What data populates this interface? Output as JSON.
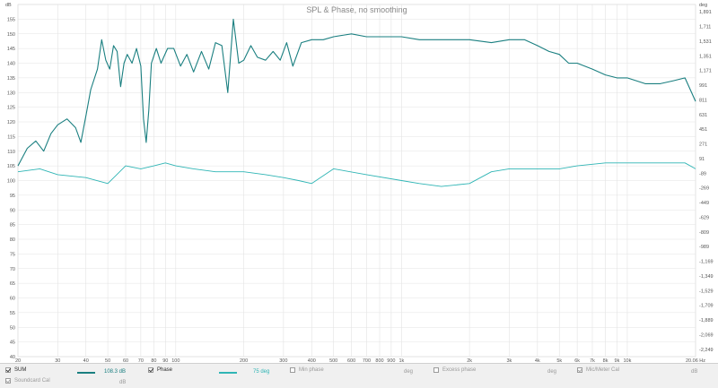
{
  "chart_data": {
    "type": "line",
    "title": "SPL & Phase, no smoothing",
    "y_left": {
      "unit": "dB",
      "min": 40,
      "max": 160,
      "ticks": [
        40,
        45,
        50,
        55,
        60,
        65,
        70,
        75,
        80,
        85,
        90,
        95,
        100,
        105,
        110,
        115,
        120,
        125,
        130,
        135,
        140,
        145,
        150,
        155
      ]
    },
    "y_right": {
      "unit": "deg",
      "ticks": [
        "-2,249",
        "-2,069",
        "-1,889",
        "-1,709",
        "-1,529",
        "-1,349",
        "-1,169",
        "-989",
        "-809",
        "-629",
        "-449",
        "-269",
        "-89",
        "91",
        "271",
        "451",
        "631",
        "811",
        "991",
        "1,171",
        "1,351",
        "1,531",
        "1,711",
        "1,891",
        "2,071"
      ],
      "top_label": "deg"
    },
    "x_axis": {
      "scale": "log",
      "min": 20,
      "max": 20060,
      "ticks": [
        {
          "v": 20,
          "label": "20"
        },
        {
          "v": 30,
          "label": "30"
        },
        {
          "v": 40,
          "label": "40"
        },
        {
          "v": 50,
          "label": "50"
        },
        {
          "v": 60,
          "label": "60"
        },
        {
          "v": 70,
          "label": "70"
        },
        {
          "v": 80,
          "label": "80"
        },
        {
          "v": 90,
          "label": "90"
        },
        {
          "v": 100,
          "label": "100"
        },
        {
          "v": 200,
          "label": "200"
        },
        {
          "v": 300,
          "label": "300"
        },
        {
          "v": 400,
          "label": "400"
        },
        {
          "v": 500,
          "label": "500"
        },
        {
          "v": 600,
          "label": "600"
        },
        {
          "v": 700,
          "label": "700"
        },
        {
          "v": 800,
          "label": "800"
        },
        {
          "v": 900,
          "label": "900"
        },
        {
          "v": 1000,
          "label": "1k"
        },
        {
          "v": 2000,
          "label": "2k"
        },
        {
          "v": 3000,
          "label": "3k"
        },
        {
          "v": 4000,
          "label": "4k"
        },
        {
          "v": 5000,
          "label": "5k"
        },
        {
          "v": 6000,
          "label": "6k"
        },
        {
          "v": 7000,
          "label": "7k"
        },
        {
          "v": 8000,
          "label": "8k"
        },
        {
          "v": 9000,
          "label": "9k"
        },
        {
          "v": 10000,
          "label": "10k"
        },
        {
          "v": 20060,
          "label": "20.06 Hz"
        }
      ]
    },
    "grid": true,
    "series": [
      {
        "name": "SUM",
        "axis": "left",
        "color": "#1a7f80",
        "points": [
          [
            20,
            105
          ],
          [
            22,
            111
          ],
          [
            24,
            113.5
          ],
          [
            26,
            110
          ],
          [
            28,
            116
          ],
          [
            30,
            119
          ],
          [
            33,
            121
          ],
          [
            36,
            118
          ],
          [
            38,
            113
          ],
          [
            40,
            122
          ],
          [
            42,
            131
          ],
          [
            45,
            138
          ],
          [
            47,
            148
          ],
          [
            49,
            141
          ],
          [
            51,
            138
          ],
          [
            53,
            146
          ],
          [
            55,
            144
          ],
          [
            57,
            132
          ],
          [
            59,
            140
          ],
          [
            61,
            143
          ],
          [
            64,
            140
          ],
          [
            67,
            145
          ],
          [
            70,
            139
          ],
          [
            72,
            121
          ],
          [
            74,
            113
          ],
          [
            76,
            124
          ],
          [
            78,
            140
          ],
          [
            82,
            145
          ],
          [
            86,
            140
          ],
          [
            92,
            145
          ],
          [
            98,
            145
          ],
          [
            105,
            139
          ],
          [
            112,
            143
          ],
          [
            120,
            137
          ],
          [
            130,
            144
          ],
          [
            140,
            138
          ],
          [
            150,
            147
          ],
          [
            160,
            146
          ],
          [
            170,
            130
          ],
          [
            180,
            155
          ],
          [
            190,
            140
          ],
          [
            200,
            141
          ],
          [
            215,
            146
          ],
          [
            230,
            142
          ],
          [
            250,
            141
          ],
          [
            270,
            144
          ],
          [
            290,
            141
          ],
          [
            310,
            147
          ],
          [
            330,
            139
          ],
          [
            360,
            147
          ],
          [
            400,
            148
          ],
          [
            450,
            148
          ],
          [
            500,
            149
          ],
          [
            600,
            150
          ],
          [
            700,
            149
          ],
          [
            800,
            149
          ],
          [
            1000,
            149
          ],
          [
            1200,
            148
          ],
          [
            1500,
            148
          ],
          [
            2000,
            148
          ],
          [
            2500,
            147
          ],
          [
            3000,
            148
          ],
          [
            3500,
            148
          ],
          [
            4000,
            146
          ],
          [
            4500,
            144
          ],
          [
            5000,
            143
          ],
          [
            5500,
            140
          ],
          [
            6000,
            140
          ],
          [
            7000,
            138
          ],
          [
            8000,
            136
          ],
          [
            9000,
            135
          ],
          [
            10000,
            135
          ],
          [
            12000,
            133
          ],
          [
            14000,
            133
          ],
          [
            16000,
            134
          ],
          [
            18000,
            135
          ],
          [
            20060,
            127
          ]
        ]
      },
      {
        "name": "Phase",
        "axis": "right",
        "color": "#2fb5b5",
        "points": [
          [
            20,
            103
          ],
          [
            25,
            104
          ],
          [
            30,
            102
          ],
          [
            40,
            101
          ],
          [
            50,
            99
          ],
          [
            60,
            105
          ],
          [
            70,
            104
          ],
          [
            80,
            105
          ],
          [
            90,
            106
          ],
          [
            100,
            105
          ],
          [
            120,
            104
          ],
          [
            150,
            103
          ],
          [
            200,
            103
          ],
          [
            250,
            102
          ],
          [
            300,
            101
          ],
          [
            350,
            100
          ],
          [
            400,
            99
          ],
          [
            500,
            104
          ],
          [
            700,
            102
          ],
          [
            1000,
            100
          ],
          [
            1200,
            99
          ],
          [
            1500,
            98
          ],
          [
            2000,
            99
          ],
          [
            2500,
            103
          ],
          [
            3000,
            104
          ],
          [
            3500,
            104
          ],
          [
            4000,
            104
          ],
          [
            5000,
            104
          ],
          [
            6000,
            105
          ],
          [
            8000,
            106
          ],
          [
            10000,
            106
          ],
          [
            12000,
            106
          ],
          [
            15000,
            106
          ],
          [
            18000,
            106
          ],
          [
            20060,
            104
          ]
        ]
      }
    ]
  },
  "legend": {
    "items": [
      {
        "label": "SUM",
        "value": "108.3 dB",
        "checked": true,
        "enabled": true,
        "color": "#1a7f80"
      },
      {
        "label": "Phase",
        "value": "75 deg",
        "checked": true,
        "enabled": true,
        "color": "#2fb5b5"
      },
      {
        "label": "Min phase",
        "unit": "deg",
        "checked": false,
        "enabled": false
      },
      {
        "label": "Excess phase",
        "unit": "deg",
        "checked": false,
        "enabled": false
      },
      {
        "label": "Mic/Meter Cal",
        "unit": "dB",
        "checked": true,
        "enabled": false
      },
      {
        "label": "Soundcard Cal",
        "unit": "dB",
        "checked": true,
        "enabled": false
      }
    ]
  }
}
